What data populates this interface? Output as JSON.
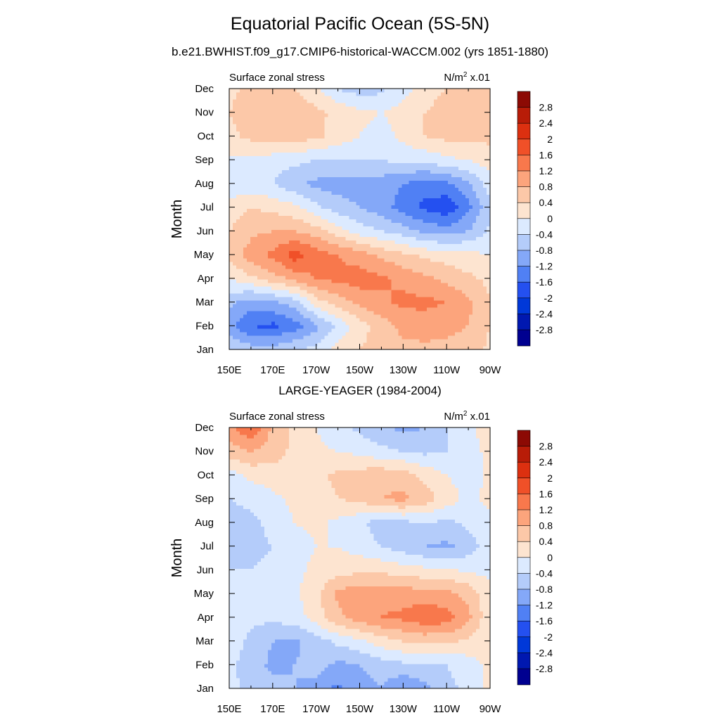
{
  "figure": {
    "title": "Equatorial Pacific Ocean (5S-5N)",
    "subtitle": "b.e21.BWHIST.f09_g17.CMIP6-historical-WACCM.002 (yrs 1851-1880)",
    "panel2_title": "LARGE-YEAGER (1984-2004)"
  },
  "chart_data": [
    {
      "type": "heatmap",
      "title": "b.e21.BWHIST.f09_g17.CMIP6-historical-WACCM.002 (yrs 1851-1880)",
      "left_label": "Surface zonal stress",
      "right_label_base": "N/m",
      "right_label_sup": "2",
      "right_label_suffix": " x.01",
      "ylabel": "Month",
      "xlabel": "",
      "x_ticks": [
        "150E",
        "170E",
        "170W",
        "150W",
        "130W",
        "110W",
        "90W"
      ],
      "y_ticks": [
        "Jan",
        "Feb",
        "Mar",
        "Apr",
        "May",
        "Jun",
        "Jul",
        "Aug",
        "Sep",
        "Oct",
        "Nov",
        "Dec"
      ],
      "lon_range": [
        150,
        270
      ],
      "levels": [
        -2.8,
        -2.4,
        -2,
        -1.6,
        -1.2,
        -0.8,
        -0.4,
        0,
        0.4,
        0.8,
        1.2,
        1.6,
        2,
        2.4,
        2.8
      ],
      "level_labels": [
        "2.8",
        "2.4",
        "2",
        "1.6",
        "1.2",
        "0.8",
        "0.4",
        "0",
        "-0.4",
        "-0.8",
        "-1.2",
        "-1.6",
        "-2",
        "-2.4",
        "-2.8"
      ],
      "colors": [
        "#000090",
        "#0018b0",
        "#0038d8",
        "#2450f0",
        "#5080f4",
        "#84a8f8",
        "#b4ccfa",
        "#dceaff",
        "#fde4d0",
        "#fcc8a8",
        "#fca47c",
        "#f8784c",
        "#f05028",
        "#dc3010",
        "#b81c08",
        "#8c0a04"
      ],
      "grid_x": [
        150,
        160,
        170,
        180,
        190,
        200,
        210,
        220,
        230,
        240,
        250,
        260,
        270
      ],
      "grid_y": [
        "Jan",
        "Feb",
        "Mar",
        "Apr",
        "May",
        "Jun",
        "Jul",
        "Aug",
        "Sep",
        "Oct",
        "Nov",
        "Dec"
      ],
      "z": [
        [
          -0.4,
          -0.6,
          -0.6,
          -0.4,
          -0.3,
          0.2,
          0.4,
          0.6,
          0.7,
          0.7,
          0.7,
          0.6,
          0.3
        ],
        [
          -1.1,
          -1.6,
          -1.7,
          -1.4,
          -0.9,
          -0.3,
          0.2,
          0.6,
          0.9,
          1.0,
          0.9,
          0.8,
          0.4
        ],
        [
          -0.7,
          -1.0,
          -0.9,
          -0.6,
          0.2,
          0.6,
          0.9,
          1.1,
          1.3,
          1.3,
          1.2,
          0.9,
          0.4
        ],
        [
          0.0,
          0.3,
          0.6,
          0.9,
          1.2,
          1.3,
          1.4,
          1.3,
          1.1,
          0.9,
          0.7,
          0.5,
          0.3
        ],
        [
          0.5,
          1.0,
          1.3,
          1.8,
          1.4,
          1.2,
          1.0,
          0.7,
          0.5,
          0.3,
          0.2,
          0.1,
          0.0
        ],
        [
          0.4,
          0.7,
          0.8,
          0.8,
          0.6,
          0.2,
          -0.2,
          -0.4,
          -0.6,
          -0.9,
          -1.0,
          -0.8,
          -0.3
        ],
        [
          0.2,
          0.4,
          0.3,
          0.1,
          -0.3,
          -0.6,
          -0.8,
          -1.0,
          -1.4,
          -1.7,
          -1.9,
          -1.3,
          -0.5
        ],
        [
          -0.3,
          -0.3,
          -0.4,
          -0.7,
          -0.9,
          -1.0,
          -1.0,
          -1.0,
          -1.2,
          -1.4,
          -1.3,
          -0.9,
          -0.2
        ],
        [
          -0.1,
          -0.1,
          -0.2,
          -0.3,
          -0.4,
          -0.4,
          -0.4,
          -0.4,
          -0.3,
          -0.3,
          -0.1,
          0.0,
          0.2
        ],
        [
          0.3,
          0.5,
          0.6,
          0.6,
          0.5,
          0.2,
          0.0,
          -0.2,
          0.1,
          0.4,
          0.5,
          0.5,
          0.5
        ],
        [
          0.4,
          0.6,
          0.7,
          0.7,
          0.5,
          0.3,
          0.1,
          0.0,
          0.2,
          0.4,
          0.6,
          0.7,
          0.5
        ],
        [
          0.3,
          0.5,
          0.5,
          0.4,
          0.1,
          -0.4,
          -0.6,
          -0.5,
          -0.2,
          0.2,
          0.4,
          0.5,
          0.4
        ]
      ]
    },
    {
      "type": "heatmap",
      "title": "LARGE-YEAGER (1984-2004)",
      "left_label": "Surface zonal stress",
      "right_label_base": "N/m",
      "right_label_sup": "2",
      "right_label_suffix": " x.01",
      "ylabel": "Month",
      "xlabel": "",
      "x_ticks": [
        "150E",
        "170E",
        "170W",
        "150W",
        "130W",
        "110W",
        "90W"
      ],
      "y_ticks": [
        "Jan",
        "Feb",
        "Mar",
        "Apr",
        "May",
        "Jun",
        "Jul",
        "Aug",
        "Sep",
        "Oct",
        "Nov",
        "Dec"
      ],
      "lon_range": [
        150,
        270
      ],
      "levels": [
        -2.8,
        -2.4,
        -2,
        -1.6,
        -1.2,
        -0.8,
        -0.4,
        0,
        0.4,
        0.8,
        1.2,
        1.6,
        2,
        2.4,
        2.8
      ],
      "level_labels": [
        "2.8",
        "2.4",
        "2",
        "1.6",
        "1.2",
        "0.8",
        "0.4",
        "0",
        "-0.4",
        "-0.8",
        "-1.2",
        "-1.6",
        "-2",
        "-2.4",
        "-2.8"
      ],
      "colors": [
        "#000090",
        "#0018b0",
        "#0038d8",
        "#2450f0",
        "#5080f4",
        "#84a8f8",
        "#b4ccfa",
        "#dceaff",
        "#fde4d0",
        "#fcc8a8",
        "#fca47c",
        "#f8784c",
        "#f05028",
        "#dc3010",
        "#b81c08",
        "#8c0a04"
      ],
      "grid_x": [
        150,
        160,
        170,
        180,
        190,
        200,
        210,
        220,
        230,
        240,
        250,
        260,
        270
      ],
      "grid_y": [
        "Jan",
        "Feb",
        "Mar",
        "Apr",
        "May",
        "Jun",
        "Jul",
        "Aug",
        "Sep",
        "Oct",
        "Nov",
        "Dec"
      ],
      "z": [
        [
          -0.3,
          -0.5,
          -0.6,
          -0.8,
          -1.0,
          -1.3,
          -1.0,
          -0.8,
          -1.2,
          -0.9,
          -0.5,
          -0.3,
          0.1
        ],
        [
          -0.3,
          -0.6,
          -0.9,
          -0.8,
          -0.6,
          -0.9,
          -0.8,
          -0.6,
          -0.5,
          -0.5,
          -0.4,
          -0.2,
          0.1
        ],
        [
          -0.2,
          -0.5,
          -0.8,
          -0.9,
          -0.6,
          -0.3,
          -0.1,
          0.2,
          0.4,
          0.5,
          0.5,
          0.3,
          0.1
        ],
        [
          -0.1,
          -0.3,
          -0.3,
          -0.2,
          0.2,
          0.7,
          1.0,
          1.2,
          1.3,
          1.5,
          1.4,
          0.9,
          0.1
        ],
        [
          -0.2,
          -0.3,
          -0.3,
          -0.1,
          0.3,
          0.9,
          1.1,
          1.1,
          1.0,
          1.0,
          0.9,
          0.7,
          0.1
        ],
        [
          -0.4,
          -0.4,
          -0.3,
          -0.1,
          0.1,
          0.2,
          0.3,
          0.3,
          0.2,
          0.1,
          0.1,
          -0.1,
          -0.1
        ],
        [
          -0.5,
          -0.5,
          -0.4,
          -0.2,
          0.0,
          0.0,
          -0.2,
          -0.4,
          -0.6,
          -0.8,
          -0.9,
          -0.6,
          -0.2
        ],
        [
          -0.6,
          -0.5,
          -0.3,
          0.0,
          0.1,
          -0.1,
          -0.3,
          -0.6,
          -0.5,
          -0.4,
          -0.5,
          -0.3,
          -0.1
        ],
        [
          -0.4,
          -0.3,
          -0.1,
          0.1,
          0.2,
          0.4,
          0.5,
          0.8,
          0.9,
          0.6,
          0.2,
          -0.1,
          0.1
        ],
        [
          -0.2,
          0.1,
          0.2,
          0.2,
          0.3,
          0.5,
          0.6,
          0.7,
          0.6,
          0.3,
          0.0,
          -0.2,
          0.1
        ],
        [
          0.6,
          0.8,
          0.6,
          0.3,
          0.1,
          0.0,
          -0.1,
          -0.3,
          -0.4,
          -0.5,
          -0.4,
          -0.3,
          0.2
        ],
        [
          1.0,
          1.6,
          0.7,
          0.3,
          0.0,
          -0.3,
          -0.5,
          -0.7,
          -0.9,
          -0.8,
          -0.4,
          -0.1,
          0.3
        ]
      ]
    }
  ]
}
